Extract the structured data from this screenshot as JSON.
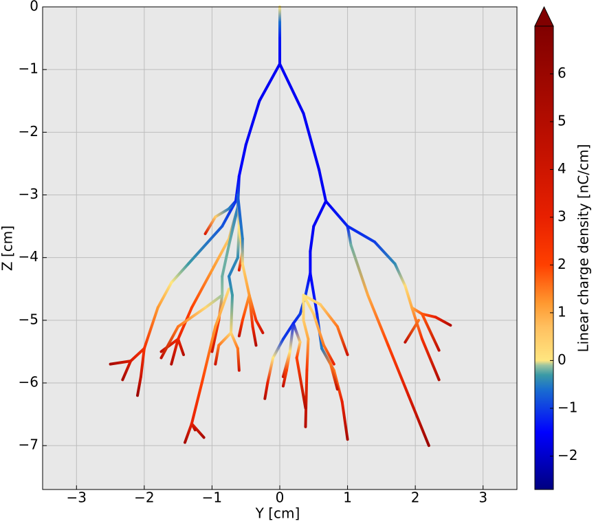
{
  "chart_data": {
    "type": "tree",
    "xlabel": "Y [cm]",
    "ylabel": "Z [cm]",
    "xlim": [
      -3.5,
      3.5
    ],
    "ylim": [
      -7.7,
      0
    ],
    "xticks": [
      {
        "value": -3,
        "label": "−3"
      },
      {
        "value": -2,
        "label": "−2"
      },
      {
        "value": -1,
        "label": "−1"
      },
      0,
      1,
      2,
      3
    ],
    "yticks": [
      0,
      {
        "value": -1,
        "label": "−1"
      },
      {
        "value": -2,
        "label": "−2"
      },
      {
        "value": -3,
        "label": "−3"
      },
      {
        "value": -4,
        "label": "−4"
      },
      {
        "value": -5,
        "label": "−5"
      },
      {
        "value": -6,
        "label": "−6"
      },
      {
        "value": -7,
        "label": "−7"
      }
    ],
    "grid": true,
    "colorbar": {
      "label": "Linear charge density [nC/cm]",
      "clim": [
        -2.7,
        7.0
      ],
      "extend": "max",
      "ticks": [
        {
          "value": -2,
          "label": "−2"
        },
        {
          "value": -1,
          "label": "−1"
        },
        0,
        1,
        2,
        3,
        4,
        5,
        6
      ]
    },
    "colormap": {
      "values": [
        -2.7,
        -1.5,
        -0.6,
        -0.3,
        -0.1,
        0,
        0.7,
        1.2,
        2,
        3,
        4.5,
        7
      ],
      "colors": [
        "#00007f",
        "#0000ff",
        "#1a6ecf",
        "#3b9aa6",
        "#9cc4a0",
        "#ffe680",
        "#ffc060",
        "#ff9930",
        "#ff4000",
        "#e82000",
        "#c01000",
        "#800000"
      ]
    },
    "series": [
      {
        "x": [
          0,
          0,
          0,
          0
        ],
        "values": [
          0,
          -0.25,
          -0.5,
          -0.91
        ],
        "charge": [
          0,
          -0.6,
          -1.3,
          -1.6
        ]
      },
      {
        "x": [
          0,
          -0.3,
          -0.5,
          -0.6
        ],
        "values": [
          -0.91,
          -1.5,
          -2.2,
          -2.7
        ],
        "charge": [
          -1.6,
          -1.6,
          -1.6,
          -1.5
        ]
      },
      {
        "x": [
          -0.6,
          -0.65,
          -0.85,
          -1.35,
          -1.6,
          -1.8,
          -2.0
        ],
        "values": [
          -2.7,
          -3.1,
          -3.5,
          -4.1,
          -4.4,
          -4.8,
          -5.45
        ],
        "charge": [
          -1.5,
          -1.2,
          -0.8,
          -0.3,
          0,
          1.2,
          2.5
        ]
      },
      {
        "x": [
          -2.0,
          -2.2,
          -2.5
        ],
        "values": [
          -5.45,
          -5.65,
          -5.7
        ],
        "charge": [
          2.5,
          3.5,
          5.5
        ]
      },
      {
        "x": [
          -2.2,
          -2.32
        ],
        "values": [
          -5.65,
          -5.95
        ],
        "charge": [
          3.5,
          5.5
        ]
      },
      {
        "x": [
          -2.0,
          -2.05,
          -2.1
        ],
        "values": [
          -5.45,
          -5.9,
          -6.2
        ],
        "charge": [
          2.5,
          4,
          6
        ]
      },
      {
        "x": [
          -0.65,
          -0.75,
          -0.95,
          -1.1
        ],
        "values": [
          -3.1,
          -3.22,
          -3.35,
          -3.62
        ],
        "charge": [
          -1.2,
          -0.5,
          0.5,
          3.5
        ]
      },
      {
        "x": [
          -0.6,
          -0.62,
          -0.75,
          -1.0,
          -1.3,
          -1.5
        ],
        "values": [
          -2.7,
          -3.2,
          -3.7,
          -4.2,
          -4.8,
          -5.3
        ],
        "charge": [
          -1.5,
          -0.5,
          0.5,
          1.2,
          2,
          2.8
        ]
      },
      {
        "x": [
          -1.5,
          -1.75
        ],
        "values": [
          -5.3,
          -5.5
        ],
        "charge": [
          2.8,
          4.5
        ]
      },
      {
        "x": [
          -1.5,
          -1.6
        ],
        "values": [
          -5.3,
          -5.7
        ],
        "charge": [
          2.8,
          5
        ]
      },
      {
        "x": [
          -1.5,
          -1.42
        ],
        "values": [
          -5.3,
          -5.55
        ],
        "charge": [
          2.8,
          5
        ]
      },
      {
        "x": [
          -0.62,
          -0.75,
          -0.85,
          -0.85,
          -0.9,
          -1.0
        ],
        "values": [
          -3.2,
          -3.8,
          -4.3,
          -4.6,
          -5.0,
          -5.5
        ],
        "charge": [
          -0.5,
          -0.2,
          -0.2,
          -0.1,
          2,
          4
        ]
      },
      {
        "x": [
          -0.85,
          -1.1,
          -1.5,
          -1.75
        ],
        "values": [
          -4.6,
          -4.8,
          -5.1,
          -5.6
        ],
        "charge": [
          -0.1,
          0.3,
          1.5,
          4.5
        ]
      },
      {
        "x": [
          -0.75,
          -0.95,
          -1.15,
          -1.3,
          -1.4
        ],
        "values": [
          -4.5,
          -5.1,
          -6.0,
          -6.65,
          -6.95
        ],
        "charge": [
          0.2,
          1.2,
          2,
          3,
          5.5
        ]
      },
      {
        "x": [
          -1.3,
          -1.12
        ],
        "values": [
          -6.65,
          -6.87
        ],
        "charge": [
          3,
          5.5
        ]
      },
      {
        "x": [
          -1.3,
          -1.25
        ],
        "values": [
          -6.65,
          -6.75
        ],
        "charge": [
          3,
          5
        ]
      },
      {
        "x": [
          -0.62,
          -0.6,
          -0.62,
          -0.75,
          -0.7,
          -0.72
        ],
        "values": [
          -3.0,
          -3.5,
          -4.0,
          -4.3,
          -4.6,
          -5.2
        ],
        "charge": [
          -0.8,
          0,
          -0.4,
          -0.5,
          -0.3,
          0.3
        ]
      },
      {
        "x": [
          -0.72,
          -0.9,
          -0.95
        ],
        "values": [
          -5.2,
          -5.4,
          -5.7
        ],
        "charge": [
          0.3,
          1.5,
          4
        ]
      },
      {
        "x": [
          -0.72,
          -0.62,
          -0.6
        ],
        "values": [
          -5.2,
          -5.45,
          -5.8
        ],
        "charge": [
          0.3,
          1.5,
          4
        ]
      },
      {
        "x": [
          -0.6,
          -0.55,
          -0.6
        ],
        "values": [
          -3.5,
          -3.9,
          -4.2
        ],
        "charge": [
          0,
          0.5,
          3.5
        ]
      },
      {
        "x": [
          -0.62,
          -0.55,
          -0.55,
          -0.45,
          -0.35,
          -0.25
        ],
        "values": [
          -3.0,
          -3.7,
          -4.1,
          -4.6,
          -5.0,
          -5.2
        ],
        "charge": [
          -0.8,
          -0.5,
          0.3,
          1.2,
          2.5,
          4
        ]
      },
      {
        "x": [
          -0.45,
          -0.4,
          -0.35
        ],
        "values": [
          -4.6,
          -5.1,
          -5.4
        ],
        "charge": [
          1.2,
          2.8,
          5
        ]
      },
      {
        "x": [
          -0.45,
          -0.55,
          -0.6
        ],
        "values": [
          -4.6,
          -5.0,
          -5.25
        ],
        "charge": [
          1.2,
          2,
          4.5
        ]
      },
      {
        "x": [
          0,
          0.35,
          0.58,
          0.68
        ],
        "values": [
          -0.91,
          -1.7,
          -2.6,
          -3.1
        ],
        "charge": [
          -1.6,
          -1.6,
          -1.6,
          -1.6
        ]
      },
      {
        "x": [
          0.68,
          1.0,
          1.4,
          1.7,
          1.85,
          1.95
        ],
        "values": [
          -3.1,
          -3.5,
          -3.75,
          -4.1,
          -4.45,
          -4.8
        ],
        "charge": [
          -1.6,
          -1.2,
          -1.0,
          -0.4,
          0.2,
          1.0
        ]
      },
      {
        "x": [
          1.95,
          2.1,
          2.3,
          2.52
        ],
        "values": [
          -4.8,
          -4.9,
          -4.95,
          -5.08
        ],
        "charge": [
          1.0,
          1.8,
          3,
          5
        ]
      },
      {
        "x": [
          2.1,
          2.35
        ],
        "values": [
          -4.9,
          -5.48
        ],
        "charge": [
          1.8,
          4.5
        ]
      },
      {
        "x": [
          1.95,
          2.1,
          2.35
        ],
        "values": [
          -4.8,
          -5.3,
          -5.95
        ],
        "charge": [
          1.0,
          2.5,
          5
        ]
      },
      {
        "x": [
          2.05,
          1.85
        ],
        "values": [
          -5.0,
          -5.35
        ],
        "charge": [
          1.5,
          4.5
        ]
      },
      {
        "x": [
          1.0,
          1.05,
          1.3,
          1.6,
          1.9,
          2.2
        ],
        "values": [
          -3.5,
          -3.8,
          -4.6,
          -5.4,
          -6.2,
          -7.0
        ],
        "charge": [
          -1.2,
          -0.2,
          1.0,
          2,
          3.5,
          6
        ]
      },
      {
        "x": [
          0.68,
          0.5,
          0.45,
          0.45,
          0.55,
          0.62
        ],
        "values": [
          -3.1,
          -3.5,
          -3.9,
          -4.25,
          -4.9,
          -5.45
        ],
        "charge": [
          -1.6,
          -1.6,
          -1.6,
          -1.5,
          -1.2,
          -0.5
        ]
      },
      {
        "x": [
          0.62,
          0.8,
          0.92,
          1.0
        ],
        "values": [
          -5.45,
          -5.8,
          -6.3,
          -6.9
        ],
        "charge": [
          -0.5,
          1.5,
          3,
          5.5
        ]
      },
      {
        "x": [
          0.62,
          0.75,
          0.85
        ],
        "values": [
          -5.45,
          -5.7,
          -6.1
        ],
        "charge": [
          -0.5,
          1.5,
          4.5
        ]
      },
      {
        "x": [
          0.45,
          0.38,
          0.3,
          0.2
        ],
        "values": [
          -4.25,
          -4.6,
          -4.9,
          -5.05
        ],
        "charge": [
          -1.5,
          -1.0,
          -1.0,
          -1.2
        ]
      },
      {
        "x": [
          0.2,
          0.05,
          -0.1,
          -0.18,
          -0.22
        ],
        "values": [
          -5.05,
          -5.3,
          -5.6,
          -6.0,
          -6.25
        ],
        "charge": [
          -1.2,
          -1.0,
          0,
          3,
          5
        ]
      },
      {
        "x": [
          0.35,
          0.6,
          0.85,
          1.0
        ],
        "values": [
          -4.6,
          -4.75,
          -5.1,
          -5.55
        ],
        "charge": [
          0,
          0.5,
          1.5,
          4
        ]
      },
      {
        "x": [
          0.35,
          0.35,
          0.42,
          0.4,
          0.38
        ],
        "values": [
          -4.6,
          -5.0,
          -5.3,
          -5.8,
          -6.7
        ],
        "charge": [
          0,
          0.5,
          1,
          2.5,
          5
        ]
      },
      {
        "x": [
          0.35,
          0.5,
          0.65,
          0.8
        ],
        "values": [
          -4.6,
          -4.9,
          -5.4,
          -5.7
        ],
        "charge": [
          0,
          0.5,
          1.5,
          3
        ]
      },
      {
        "x": [
          0.2,
          0.3,
          0.25,
          0.38
        ],
        "values": [
          -5.05,
          -5.35,
          -5.6,
          -6.4
        ],
        "charge": [
          -1.2,
          0.5,
          2,
          5
        ]
      },
      {
        "x": [
          0.2,
          0.15,
          0.05
        ],
        "values": [
          -5.05,
          -5.5,
          -5.9
        ],
        "charge": [
          -1.2,
          0,
          4
        ]
      },
      {
        "x": [
          0.15,
          0.1,
          0.05
        ],
        "values": [
          -5.5,
          -5.8,
          -6.05
        ],
        "charge": [
          0,
          2,
          4.5
        ]
      }
    ]
  }
}
